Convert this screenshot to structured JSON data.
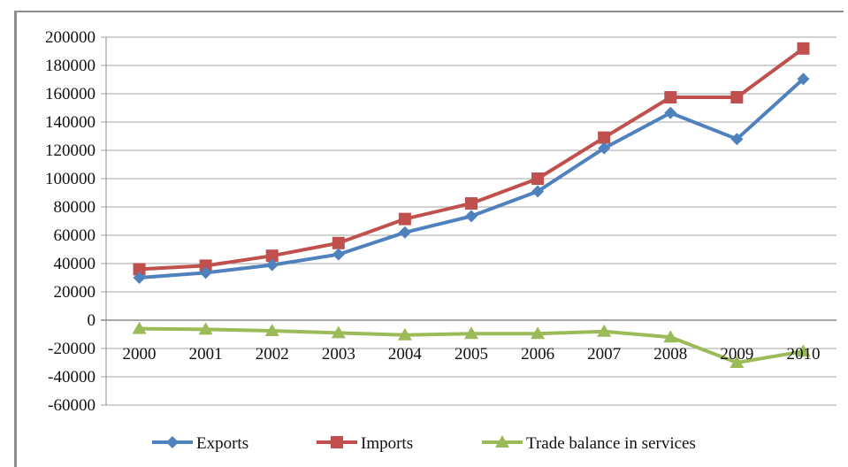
{
  "chart_data": {
    "type": "line",
    "title": "",
    "xlabel": "",
    "ylabel": "",
    "categories": [
      "2000",
      "2001",
      "2002",
      "2003",
      "2004",
      "2005",
      "2006",
      "2007",
      "2008",
      "2009",
      "2010"
    ],
    "ylim": [
      -60000,
      200000
    ],
    "yticks": [
      200000,
      180000,
      160000,
      140000,
      120000,
      100000,
      80000,
      60000,
      40000,
      20000,
      0,
      -20000,
      -40000,
      -60000
    ],
    "ytick_labels": [
      "200000",
      "180000",
      "160000",
      "140000",
      "120000",
      "100000",
      "80000",
      "60000",
      "40000",
      "20000",
      "0",
      "-20000",
      "-40000",
      "-60000"
    ],
    "grid": true,
    "legend_position": "bottom",
    "series": [
      {
        "name": "Exports",
        "color": "#4f81bd",
        "marker": "diamond",
        "values": [
          30000,
          33500,
          39000,
          46500,
          62000,
          73500,
          91000,
          121500,
          146500,
          128000,
          170500
        ]
      },
      {
        "name": "Imports",
        "color": "#c0504d",
        "marker": "square",
        "values": [
          36000,
          38500,
          45500,
          54500,
          71500,
          82500,
          100000,
          129000,
          157500,
          157500,
          192000
        ]
      },
      {
        "name": "Trade balance in services",
        "color": "#9bbb59",
        "marker": "triangle",
        "values": [
          -6000,
          -6500,
          -7500,
          -9000,
          -10500,
          -9500,
          -9500,
          -8000,
          -12000,
          -30000,
          -22000
        ]
      }
    ]
  }
}
